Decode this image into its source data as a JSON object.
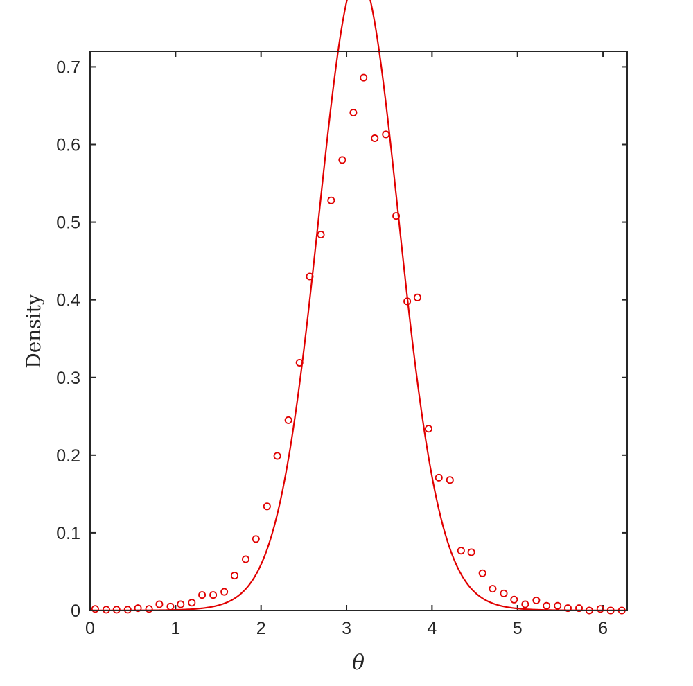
{
  "chart_data": {
    "type": "scatter",
    "title": "",
    "xlabel": "θ",
    "ylabel": "Density",
    "xlim": [
      0,
      6.2832
    ],
    "ylim": [
      0,
      0.72
    ],
    "xticks": [
      0,
      1,
      2,
      3,
      4,
      5,
      6
    ],
    "xtick_labels": [
      "0",
      "1",
      "2",
      "3",
      "4",
      "5",
      "6"
    ],
    "yticks": [
      0,
      0.1,
      0.2,
      0.3,
      0.4,
      0.5,
      0.6,
      0.7
    ],
    "ytick_labels": [
      "0",
      "0.1",
      "0.2",
      "0.3",
      "0.4",
      "0.5",
      "0.6",
      "0.7"
    ],
    "grid": false,
    "box": true,
    "color": "#e00000",
    "series": [
      {
        "kind": "markers",
        "marker": "circle",
        "x": [
          0.06,
          0.19,
          0.31,
          0.44,
          0.56,
          0.69,
          0.81,
          0.94,
          1.06,
          1.19,
          1.31,
          1.44,
          1.57,
          1.69,
          1.82,
          1.94,
          2.07,
          2.19,
          2.32,
          2.45,
          2.57,
          2.7,
          2.82,
          2.95,
          3.08,
          3.2,
          3.33,
          3.46,
          3.58,
          3.71,
          3.83,
          3.96,
          4.08,
          4.21,
          4.34,
          4.46,
          4.59,
          4.71,
          4.84,
          4.96,
          5.09,
          5.22,
          5.34,
          5.47,
          5.59,
          5.72,
          5.84,
          5.97,
          6.09,
          6.22
        ],
        "y": [
          0.002,
          0.001,
          0.001,
          0.001,
          0.003,
          0.002,
          0.008,
          0.005,
          0.008,
          0.01,
          0.02,
          0.02,
          0.024,
          0.045,
          0.066,
          0.092,
          0.134,
          0.199,
          0.245,
          0.319,
          0.43,
          0.484,
          0.528,
          0.58,
          0.641,
          0.686,
          0.608,
          0.613,
          0.508,
          0.398,
          0.403,
          0.234,
          0.171,
          0.168,
          0.077,
          0.075,
          0.048,
          0.028,
          0.022,
          0.014,
          0.008,
          0.013,
          0.006,
          0.006,
          0.003,
          0.003,
          0.0,
          0.002,
          0.0,
          0.0
        ]
      },
      {
        "kind": "line",
        "function": "von_mises",
        "mu": 3.1416,
        "kappa": 4.5,
        "samples": 400
      }
    ]
  }
}
